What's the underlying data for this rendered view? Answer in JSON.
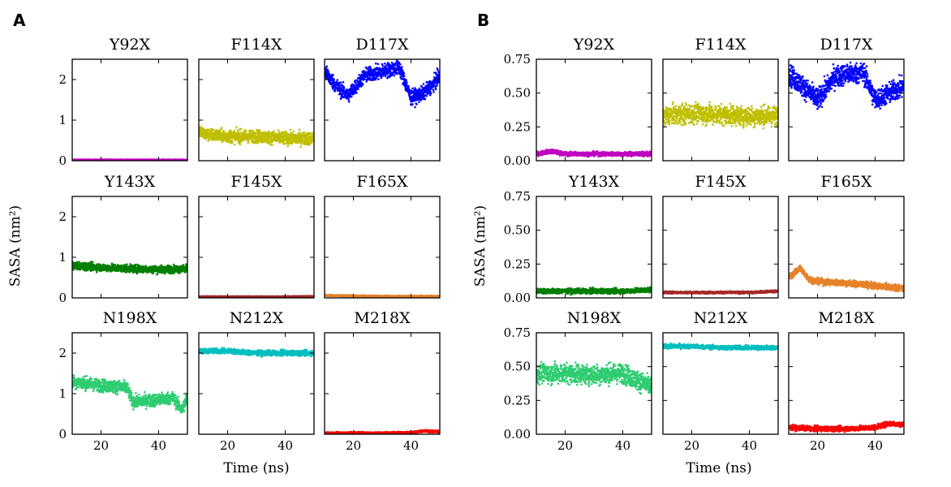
{
  "figure": {
    "panel_a_letter": "A",
    "panel_b_letter": "B",
    "ylabel_a": "SASA (nm²)",
    "ylabel_b": "SASA (nm²)",
    "xlabel_a": "Time (ns)",
    "xlabel_b": "Time (ns)"
  },
  "chart_data": [
    {
      "panel": "A",
      "type": "scatter",
      "xlabel": "Time (ns)",
      "ylabel": "SASA (nm²)",
      "xlim": [
        10,
        50
      ],
      "ylim": [
        0,
        2.5
      ],
      "xticks": [
        20,
        40
      ],
      "xtick_labels": [
        "20",
        "40"
      ],
      "yticks": [
        0,
        1,
        2
      ],
      "ytick_labels": [
        "0",
        "1",
        "2"
      ],
      "subplots": [
        {
          "title": "Y92X",
          "color": "#c000c0",
          "x": [
            10,
            20,
            30,
            40,
            50
          ],
          "y": [
            0.02,
            0.02,
            0.02,
            0.02,
            0.02
          ],
          "spread": 0.02
        },
        {
          "title": "F114X",
          "color": "#bfbf00",
          "x": [
            10,
            12,
            20,
            30,
            40,
            48
          ],
          "y": [
            0.75,
            0.65,
            0.6,
            0.6,
            0.55,
            0.55
          ],
          "spread": 0.3
        },
        {
          "title": "D117X",
          "color": "#0000ff",
          "x": [
            10,
            14,
            18,
            24,
            30,
            36,
            40,
            44,
            48,
            50
          ],
          "y": [
            2.2,
            1.85,
            1.6,
            2.1,
            2.2,
            2.3,
            1.55,
            1.65,
            1.9,
            2.1
          ],
          "spread": 0.35
        },
        {
          "title": "Y143X",
          "color": "#007f00",
          "x": [
            10,
            20,
            30,
            40,
            50
          ],
          "y": [
            0.8,
            0.75,
            0.72,
            0.7,
            0.72
          ],
          "spread": 0.18
        },
        {
          "title": "F145X",
          "color": "#a52a2a",
          "x": [
            10,
            20,
            30,
            40,
            50
          ],
          "y": [
            0.03,
            0.03,
            0.03,
            0.03,
            0.04
          ],
          "spread": 0.02
        },
        {
          "title": "F165X",
          "color": "#e6822a",
          "x": [
            10,
            20,
            30,
            40,
            50
          ],
          "y": [
            0.06,
            0.05,
            0.04,
            0.04,
            0.04
          ],
          "spread": 0.03
        },
        {
          "title": "N198X",
          "color": "#2ecc71",
          "x": [
            10,
            20,
            29,
            31,
            40,
            45,
            48,
            50
          ],
          "y": [
            1.3,
            1.2,
            1.15,
            0.8,
            0.85,
            0.9,
            0.6,
            0.9
          ],
          "spread": 0.3
        },
        {
          "title": "N212X",
          "color": "#00bfbf",
          "x": [
            10,
            20,
            30,
            40,
            50
          ],
          "y": [
            2.05,
            2.05,
            2.0,
            2.0,
            2.0
          ],
          "spread": 0.12
        },
        {
          "title": "M218X",
          "color": "#ff0000",
          "x": [
            10,
            20,
            30,
            40,
            45,
            50
          ],
          "y": [
            0.03,
            0.03,
            0.03,
            0.04,
            0.08,
            0.06
          ],
          "spread": 0.05
        }
      ]
    },
    {
      "panel": "B",
      "type": "scatter",
      "xlabel": "Time (ns)",
      "ylabel": "SASA (nm²)",
      "xlim": [
        10,
        50
      ],
      "ylim": [
        0,
        0.75
      ],
      "xticks": [
        20,
        40
      ],
      "xtick_labels": [
        "20",
        "40"
      ],
      "yticks": [
        0,
        0.25,
        0.5,
        0.75
      ],
      "ytick_labels": [
        "0.00",
        "0.25",
        "0.50",
        "0.75"
      ],
      "subplots": [
        {
          "title": "Y92X",
          "color": "#c000c0",
          "x": [
            10,
            15,
            20,
            30,
            40,
            50
          ],
          "y": [
            0.05,
            0.07,
            0.05,
            0.05,
            0.05,
            0.05
          ],
          "spread": 0.03
        },
        {
          "title": "F114X",
          "color": "#bfbf00",
          "x": [
            10,
            20,
            30,
            40,
            50
          ],
          "y": [
            0.33,
            0.35,
            0.34,
            0.33,
            0.33
          ],
          "spread": 0.14
        },
        {
          "title": "D117X",
          "color": "#0000ff",
          "x": [
            10,
            15,
            20,
            26,
            30,
            36,
            40,
            45,
            50
          ],
          "y": [
            0.64,
            0.55,
            0.45,
            0.62,
            0.64,
            0.65,
            0.45,
            0.5,
            0.55
          ],
          "spread": 0.15
        },
        {
          "title": "Y143X",
          "color": "#007f00",
          "x": [
            10,
            20,
            30,
            40,
            50
          ],
          "y": [
            0.05,
            0.05,
            0.05,
            0.05,
            0.06
          ],
          "spread": 0.035
        },
        {
          "title": "F145X",
          "color": "#a52a2a",
          "x": [
            10,
            20,
            30,
            40,
            50
          ],
          "y": [
            0.04,
            0.04,
            0.04,
            0.04,
            0.05
          ],
          "spread": 0.015
        },
        {
          "title": "F165X",
          "color": "#e6822a",
          "x": [
            10,
            14,
            17,
            20,
            30,
            40,
            50
          ],
          "y": [
            0.15,
            0.22,
            0.14,
            0.12,
            0.11,
            0.09,
            0.07
          ],
          "spread": 0.045
        },
        {
          "title": "N198X",
          "color": "#2ecc71",
          "x": [
            10,
            20,
            30,
            40,
            45,
            50
          ],
          "y": [
            0.45,
            0.45,
            0.44,
            0.45,
            0.4,
            0.35
          ],
          "spread": 0.14
        },
        {
          "title": "N212X",
          "color": "#00bfbf",
          "x": [
            10,
            20,
            30,
            40,
            50
          ],
          "y": [
            0.65,
            0.65,
            0.64,
            0.64,
            0.64
          ],
          "spread": 0.03
        },
        {
          "title": "M218X",
          "color": "#ff0000",
          "x": [
            10,
            20,
            30,
            40,
            45,
            50
          ],
          "y": [
            0.05,
            0.04,
            0.04,
            0.05,
            0.08,
            0.07
          ],
          "spread": 0.035
        }
      ]
    }
  ]
}
